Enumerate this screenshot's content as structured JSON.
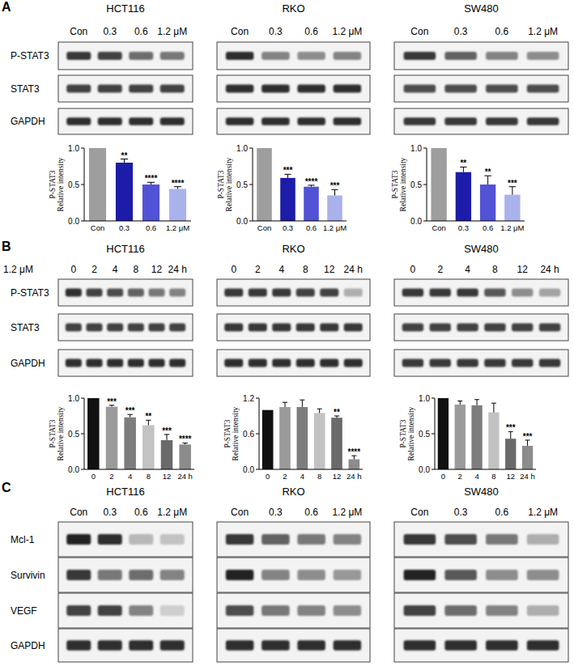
{
  "chart_data": [
    {
      "type": "bar",
      "ylabel": [
        "P-STAT3",
        "Relative intensity"
      ],
      "categories": [
        "Con",
        "0.3",
        "0.6",
        "1.2 μM"
      ],
      "values": [
        1,
        0.8,
        0.5,
        0.44
      ],
      "errors": [
        null,
        0.05,
        0.03,
        0.03
      ],
      "annotations": [
        null,
        "**",
        "****",
        "****"
      ],
      "colors": [
        "#9e9e9e",
        "#1c1ca8",
        "#5252d6",
        "#aab2ec"
      ],
      "ylim": [
        0,
        1
      ],
      "yticks": [
        {
          "value": 0,
          "label": "0.0"
        },
        {
          "value": 0.5,
          "label": "0.5"
        },
        {
          "value": 1,
          "label": "1.0"
        }
      ],
      "grid": false
    },
    {
      "type": "bar",
      "ylabel": [
        "P-STAT3",
        "Relative intensity"
      ],
      "categories": [
        "Con",
        "0.3",
        "0.6",
        "1.2 μM"
      ],
      "values": [
        1,
        0.59,
        0.47,
        0.35
      ],
      "errors": [
        null,
        0.05,
        0.02,
        0.08
      ],
      "annotations": [
        null,
        "***",
        "****",
        "***"
      ],
      "colors": [
        "#9e9e9e",
        "#1c1ca8",
        "#5252d6",
        "#aab2ec"
      ],
      "ylim": [
        0,
        1
      ],
      "yticks": [
        {
          "value": 0,
          "label": "0.0"
        },
        {
          "value": 0.5,
          "label": "0.5"
        },
        {
          "value": 1,
          "label": "1.0"
        }
      ],
      "grid": false
    },
    {
      "type": "bar",
      "ylabel": [
        "P-STAT3",
        "Relative intensity"
      ],
      "categories": [
        "Con",
        "0.3",
        "0.6",
        "1.2 μM"
      ],
      "values": [
        1,
        0.67,
        0.5,
        0.36
      ],
      "errors": [
        null,
        0.07,
        0.12,
        0.11
      ],
      "annotations": [
        null,
        "**",
        "**",
        "***"
      ],
      "colors": [
        "#9e9e9e",
        "#1c1ca8",
        "#5252d6",
        "#aab2ec"
      ],
      "ylim": [
        0,
        1
      ],
      "yticks": [
        {
          "value": 0,
          "label": "0.0"
        },
        {
          "value": 0.5,
          "label": "0.5"
        },
        {
          "value": 1,
          "label": "1.0"
        }
      ],
      "grid": false
    },
    {
      "type": "bar",
      "ylabel": [
        "P-STAT3",
        "Relative intensity"
      ],
      "categories": [
        "0",
        "2",
        "4",
        "8",
        "12",
        "24 h"
      ],
      "values": [
        1,
        0.88,
        0.73,
        0.62,
        0.41,
        0.35
      ],
      "errors": [
        null,
        0.02,
        0.04,
        0.07,
        0.08,
        0.02
      ],
      "annotations": [
        null,
        "***",
        "***",
        "**",
        "***",
        "****"
      ],
      "colors": [
        "#111111",
        "#9b9b9b",
        "#7d7d7d",
        "#c2c2c2",
        "#6a6a6a",
        "#8c8c8c"
      ],
      "ylim": [
        0,
        1
      ],
      "yticks": [
        {
          "value": 0,
          "label": "0.0"
        },
        {
          "value": 0.5,
          "label": "0.5"
        },
        {
          "value": 1,
          "label": "1.0"
        }
      ],
      "grid": false
    },
    {
      "type": "bar",
      "ylabel": [
        "P-STAT3",
        "Relative intensity"
      ],
      "categories": [
        "0",
        "2",
        "4",
        "8",
        "12",
        "24 h"
      ],
      "values": [
        1,
        1.05,
        1.05,
        0.95,
        0.87,
        0.17
      ],
      "errors": [
        null,
        0.08,
        0.12,
        0.07,
        0.03,
        0.06
      ],
      "annotations": [
        null,
        null,
        null,
        null,
        "**",
        "****"
      ],
      "colors": [
        "#111111",
        "#9b9b9b",
        "#7d7d7d",
        "#c2c2c2",
        "#6a6a6a",
        "#8c8c8c"
      ],
      "ylim": [
        0,
        1.2
      ],
      "yticks": [
        {
          "value": 0,
          "label": "0.0"
        },
        {
          "value": 0.6,
          "label": "0.6"
        },
        {
          "value": 1.2,
          "label": "1.2"
        }
      ],
      "grid": false
    },
    {
      "type": "bar",
      "ylabel": [
        "P-STAT3",
        "Relative intensity"
      ],
      "categories": [
        "0",
        "2",
        "4",
        "8",
        "12",
        "24 h"
      ],
      "values": [
        1,
        0.91,
        0.9,
        0.8,
        0.43,
        0.33
      ],
      "errors": [
        null,
        0.05,
        0.08,
        0.13,
        0.1,
        0.08
      ],
      "annotations": [
        null,
        null,
        null,
        null,
        "***",
        "***"
      ],
      "colors": [
        "#111111",
        "#9b9b9b",
        "#7d7d7d",
        "#c2c2c2",
        "#6a6a6a",
        "#8c8c8c"
      ],
      "ylim": [
        0,
        1
      ],
      "yticks": [
        {
          "value": 0,
          "label": "0.0"
        },
        {
          "value": 0.5,
          "label": "0.5"
        },
        {
          "value": 1,
          "label": "1.0"
        }
      ],
      "grid": false
    }
  ],
  "blots": [
    {
      "label": "A",
      "cells": [
        {
          "name": "HCT116",
          "lanes": [
            "Con",
            "0.3",
            "0.6",
            "1.2 μM"
          ],
          "rows": [
            {
              "name": "P-STAT3",
              "intensity": [
                0.85,
                0.8,
                0.6,
                0.55
              ]
            },
            {
              "name": "STAT3",
              "intensity": [
                0.8,
                0.8,
                0.8,
                0.8
              ]
            },
            {
              "name": "GAPDH",
              "intensity": [
                0.9,
                0.9,
                0.9,
                0.9
              ]
            }
          ]
        },
        {
          "name": "RKO",
          "lanes": [
            "Con",
            "0.3",
            "0.6",
            "1.2 μM"
          ],
          "rows": [
            {
              "name": "P-STAT3",
              "intensity": [
                0.9,
                0.5,
                0.45,
                0.5
              ]
            },
            {
              "name": "STAT3",
              "intensity": [
                0.9,
                0.9,
                0.9,
                0.9
              ]
            },
            {
              "name": "GAPDH",
              "intensity": [
                0.9,
                0.9,
                0.9,
                0.9
              ]
            }
          ]
        },
        {
          "name": "SW480",
          "lanes": [
            "Con",
            "0.3",
            "0.6",
            "1.2 μM"
          ],
          "rows": [
            {
              "name": "P-STAT3",
              "intensity": [
                0.85,
                0.65,
                0.5,
                0.45
              ]
            },
            {
              "name": "STAT3",
              "intensity": [
                0.75,
                0.75,
                0.75,
                0.75
              ]
            },
            {
              "name": "GAPDH",
              "intensity": [
                0.85,
                0.85,
                0.85,
                0.85
              ]
            }
          ]
        }
      ]
    },
    {
      "label": "B",
      "treatment": "1.2 μM",
      "cells": [
        {
          "name": "HCT116",
          "lanes": [
            "0",
            "2",
            "4",
            "8",
            "12",
            "24 h"
          ],
          "rows": [
            {
              "name": "P-STAT3",
              "intensity": [
                0.9,
                0.8,
                0.75,
                0.65,
                0.55,
                0.5
              ]
            },
            {
              "name": "STAT3",
              "intensity": [
                0.8,
                0.8,
                0.8,
                0.8,
                0.8,
                0.8
              ]
            },
            {
              "name": "GAPDH",
              "intensity": [
                0.9,
                0.9,
                0.9,
                0.9,
                0.9,
                0.9
              ]
            }
          ]
        },
        {
          "name": "RKO",
          "lanes": [
            "0",
            "2",
            "4",
            "8",
            "12",
            "24 h"
          ],
          "rows": [
            {
              "name": "P-STAT3",
              "intensity": [
                0.85,
                0.85,
                0.85,
                0.8,
                0.8,
                0.3
              ]
            },
            {
              "name": "STAT3",
              "intensity": [
                0.85,
                0.85,
                0.85,
                0.85,
                0.85,
                0.85
              ]
            },
            {
              "name": "GAPDH",
              "intensity": [
                0.9,
                0.9,
                0.9,
                0.9,
                0.9,
                0.9
              ]
            }
          ]
        },
        {
          "name": "SW480",
          "lanes": [
            "0",
            "2",
            "4",
            "8",
            "12",
            "24 h"
          ],
          "rows": [
            {
              "name": "P-STAT3",
              "intensity": [
                0.85,
                0.85,
                0.85,
                0.7,
                0.45,
                0.35
              ]
            },
            {
              "name": "STAT3",
              "intensity": [
                0.8,
                0.8,
                0.8,
                0.8,
                0.8,
                0.8
              ]
            },
            {
              "name": "GAPDH",
              "intensity": [
                0.85,
                0.85,
                0.85,
                0.85,
                0.85,
                0.85
              ]
            }
          ]
        }
      ]
    },
    {
      "label": "C",
      "cells": [
        {
          "name": "HCT116",
          "lanes": [
            "Con",
            "0.3",
            "0.6",
            "1.2 μM"
          ],
          "rows": [
            {
              "name": "Mcl-1",
              "intensity": [
                0.95,
                0.9,
                0.25,
                0.2
              ]
            },
            {
              "name": "Survivin",
              "intensity": [
                0.85,
                0.55,
                0.6,
                0.5
              ]
            },
            {
              "name": "VEGF",
              "intensity": [
                0.8,
                0.8,
                0.5,
                0.15
              ]
            },
            {
              "name": "GAPDH",
              "intensity": [
                0.9,
                0.9,
                0.9,
                0.9
              ]
            }
          ]
        },
        {
          "name": "RKO",
          "lanes": [
            "Con",
            "0.3",
            "0.6",
            "1.2 μM"
          ],
          "rows": [
            {
              "name": "Mcl-1",
              "intensity": [
                0.85,
                0.65,
                0.55,
                0.5
              ]
            },
            {
              "name": "Survivin",
              "intensity": [
                0.95,
                0.5,
                0.45,
                0.4
              ]
            },
            {
              "name": "VEGF",
              "intensity": [
                0.75,
                0.55,
                0.5,
                0.45
              ]
            },
            {
              "name": "GAPDH",
              "intensity": [
                0.9,
                0.9,
                0.9,
                0.9
              ]
            }
          ]
        },
        {
          "name": "SW480",
          "lanes": [
            "Con",
            "0.3",
            "0.6",
            "1.2 μM"
          ],
          "rows": [
            {
              "name": "Mcl-1",
              "intensity": [
                0.85,
                0.75,
                0.55,
                0.3
              ]
            },
            {
              "name": "Survivin",
              "intensity": [
                0.95,
                0.7,
                0.45,
                0.45
              ]
            },
            {
              "name": "VEGF",
              "intensity": [
                0.8,
                0.6,
                0.5,
                0.3
              ]
            },
            {
              "name": "GAPDH",
              "intensity": [
                0.9,
                0.9,
                0.9,
                0.9
              ]
            }
          ]
        }
      ]
    }
  ]
}
